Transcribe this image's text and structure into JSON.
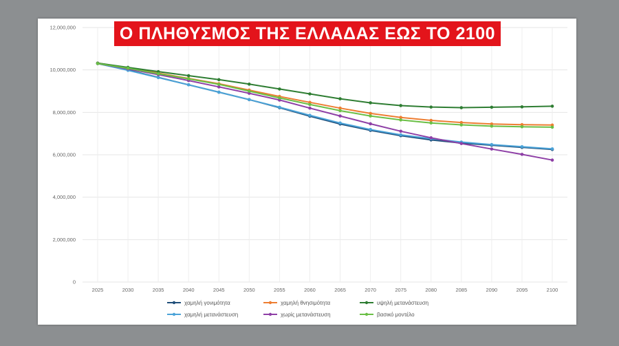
{
  "chart_data": {
    "type": "line",
    "title": "Ο ΠΛΗΘΥΣΜΟΣ ΤΗΣ ΕΛΛΑΔΑΣ ΕΩΣ ΤΟ 2100",
    "x": [
      2025,
      2030,
      2035,
      2040,
      2045,
      2050,
      2055,
      2060,
      2065,
      2070,
      2075,
      2080,
      2085,
      2090,
      2095,
      2100
    ],
    "y_ticks": [
      0,
      2000000,
      4000000,
      6000000,
      8000000,
      10000000,
      12000000
    ],
    "y_tick_labels": [
      "0",
      "2,000,000",
      "4,000,000",
      "6,000,000",
      "8,000,000",
      "10,000,000",
      "12,000,000"
    ],
    "ylim": [
      0,
      12000000
    ],
    "grid": true,
    "legend_position": "bottom",
    "series": [
      {
        "name": "χαμηλή γονιμότητα",
        "color": "#1f4e79",
        "values": [
          10300000,
          10000000,
          9650000,
          9300000,
          8950000,
          8600000,
          8220000,
          7820000,
          7450000,
          7150000,
          6900000,
          6700000,
          6550000,
          6450000,
          6350000,
          6250000
        ]
      },
      {
        "name": "χαμηλή θνησιμότητα",
        "color": "#ed7d31",
        "values": [
          10320000,
          10100000,
          9850000,
          9600000,
          9350000,
          9050000,
          8750000,
          8470000,
          8200000,
          7950000,
          7760000,
          7620000,
          7520000,
          7450000,
          7420000,
          7400000
        ]
      },
      {
        "name": "υψηλή μετανάστευση",
        "color": "#2e7d32",
        "values": [
          10320000,
          10120000,
          9920000,
          9730000,
          9540000,
          9330000,
          9100000,
          8870000,
          8640000,
          8450000,
          8320000,
          8250000,
          8220000,
          8240000,
          8260000,
          8290000
        ]
      },
      {
        "name": "χαμηλή μετανάστευση",
        "color": "#4ba3d8",
        "values": [
          10300000,
          9980000,
          9640000,
          9300000,
          8950000,
          8600000,
          8240000,
          7860000,
          7500000,
          7190000,
          6940000,
          6760000,
          6600000,
          6480000,
          6380000,
          6280000
        ]
      },
      {
        "name": "χωρίς μετανάστευση",
        "color": "#8e3fa6",
        "values": [
          10300000,
          10050000,
          9780000,
          9500000,
          9200000,
          8900000,
          8580000,
          8200000,
          7830000,
          7460000,
          7110000,
          6800000,
          6530000,
          6270000,
          6020000,
          5750000
        ]
      },
      {
        "name": "βασικό μοντέλο",
        "color": "#6abf45",
        "values": [
          10300000,
          10080000,
          9820000,
          9580000,
          9320000,
          9000000,
          8680000,
          8370000,
          8080000,
          7830000,
          7640000,
          7500000,
          7410000,
          7350000,
          7320000,
          7300000
        ]
      }
    ]
  }
}
